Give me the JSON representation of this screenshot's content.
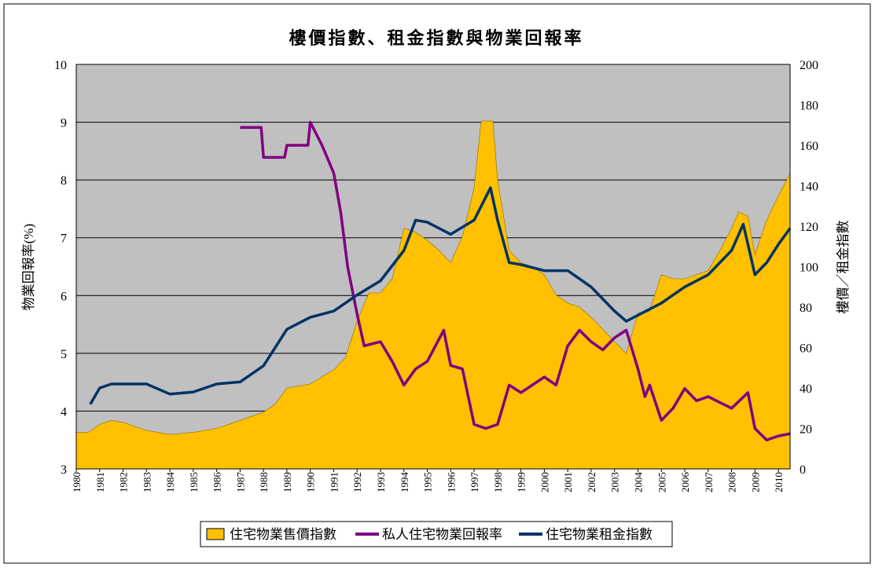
{
  "chart_data": {
    "type": "line",
    "title": "樓價指數、租金指數與物業回報率",
    "ylabel_left": "物業回報率(%)",
    "ylabel_right": "樓價／租金指數",
    "ylim_left": [
      3,
      10
    ],
    "ylim_right": [
      0,
      200
    ],
    "xlim": [
      1980,
      2010.5
    ],
    "yticks_left": [
      "3",
      "4",
      "5",
      "6",
      "7",
      "8",
      "9",
      "10"
    ],
    "yticks_right": [
      "0",
      "20",
      "40",
      "60",
      "80",
      "100",
      "120",
      "140",
      "160",
      "180",
      "200"
    ],
    "xticks": [
      "1980",
      "1981",
      "1982",
      "1983",
      "1984",
      "1985",
      "1986",
      "1987",
      "1988",
      "1989",
      "1990",
      "1991",
      "1992",
      "1993",
      "1994",
      "1995",
      "1996",
      "1997",
      "1998",
      "1999",
      "2000",
      "2001",
      "2002",
      "2003",
      "2004",
      "2005",
      "2006",
      "2007",
      "2008",
      "2009",
      "2010"
    ],
    "grid": "horizontal",
    "plot_background": "#c0c0c0",
    "legend_position": "bottom",
    "series": [
      {
        "name": "住宅物業售價指數",
        "kind": "area",
        "axis": "right",
        "color": "#ffc000",
        "points": [
          [
            1980,
            18
          ],
          [
            1980.5,
            18
          ],
          [
            1981,
            22
          ],
          [
            1981.5,
            24
          ],
          [
            1982,
            23
          ],
          [
            1983,
            19
          ],
          [
            1984,
            17
          ],
          [
            1985,
            18
          ],
          [
            1986,
            20
          ],
          [
            1987,
            24
          ],
          [
            1988,
            28
          ],
          [
            1988.5,
            32
          ],
          [
            1989,
            40
          ],
          [
            1990,
            42
          ],
          [
            1991,
            49
          ],
          [
            1991.5,
            55
          ],
          [
            1992,
            73
          ],
          [
            1992.5,
            87
          ],
          [
            1993,
            87
          ],
          [
            1993.5,
            94
          ],
          [
            1994,
            119
          ],
          [
            1994.5,
            117
          ],
          [
            1995,
            113
          ],
          [
            1995.5,
            108
          ],
          [
            1996,
            102
          ],
          [
            1996.5,
            115
          ],
          [
            1997,
            139
          ],
          [
            1997.3,
            172
          ],
          [
            1997.8,
            172
          ],
          [
            1998,
            143
          ],
          [
            1998.5,
            108
          ],
          [
            1999,
            102
          ],
          [
            1999.5,
            100
          ],
          [
            2000,
            96
          ],
          [
            2000.5,
            86
          ],
          [
            2001,
            82
          ],
          [
            2001.5,
            80
          ],
          [
            2002,
            75
          ],
          [
            2002.5,
            69
          ],
          [
            2003,
            63
          ],
          [
            2003.5,
            57
          ],
          [
            2004,
            77
          ],
          [
            2004.5,
            78
          ],
          [
            2005,
            96
          ],
          [
            2005.5,
            94
          ],
          [
            2006,
            94
          ],
          [
            2007,
            98
          ],
          [
            2007.5,
            108
          ],
          [
            2008,
            119
          ],
          [
            2008.3,
            127
          ],
          [
            2008.7,
            125
          ],
          [
            2009,
            106
          ],
          [
            2009.5,
            123
          ],
          [
            2010,
            135
          ],
          [
            2010.5,
            146
          ]
        ]
      },
      {
        "name": "私人住宅物業回報率",
        "kind": "line",
        "axis": "left",
        "color": "#800080",
        "points": [
          [
            1987,
            8.91
          ],
          [
            1987.9,
            8.91
          ],
          [
            1988,
            8.39
          ],
          [
            1988.9,
            8.39
          ],
          [
            1989,
            8.6
          ],
          [
            1989.9,
            8.6
          ],
          [
            1990,
            9.0
          ],
          [
            1990.5,
            8.6
          ],
          [
            1991,
            8.12
          ],
          [
            1991.3,
            7.44
          ],
          [
            1991.6,
            6.49
          ],
          [
            1992,
            5.68
          ],
          [
            1992.3,
            5.13
          ],
          [
            1993,
            5.2
          ],
          [
            1993.5,
            4.86
          ],
          [
            1994,
            4.45
          ],
          [
            1994.5,
            4.73
          ],
          [
            1995,
            4.86
          ],
          [
            1995.7,
            5.4
          ],
          [
            1996,
            4.79
          ],
          [
            1996.5,
            4.73
          ],
          [
            1997,
            3.77
          ],
          [
            1997.5,
            3.7
          ],
          [
            1998,
            3.77
          ],
          [
            1998.5,
            4.45
          ],
          [
            1999,
            4.32
          ],
          [
            2000,
            4.59
          ],
          [
            2000.5,
            4.45
          ],
          [
            2001,
            5.13
          ],
          [
            2001.5,
            5.4
          ],
          [
            2002,
            5.2
          ],
          [
            2002.5,
            5.06
          ],
          [
            2003,
            5.27
          ],
          [
            2003.5,
            5.4
          ],
          [
            2004,
            4.73
          ],
          [
            2004.3,
            4.25
          ],
          [
            2004.5,
            4.45
          ],
          [
            2005,
            3.84
          ],
          [
            2005.5,
            4.05
          ],
          [
            2006,
            4.39
          ],
          [
            2006.5,
            4.18
          ],
          [
            2007,
            4.25
          ],
          [
            2008,
            4.05
          ],
          [
            2008.7,
            4.32
          ],
          [
            2009,
            3.7
          ],
          [
            2009.5,
            3.5
          ],
          [
            2010,
            3.57
          ],
          [
            2010.5,
            3.61
          ]
        ]
      },
      {
        "name": "住宅物業租金指數",
        "kind": "line",
        "axis": "right",
        "color": "#003366",
        "points": [
          [
            1980.6,
            32
          ],
          [
            1981,
            40
          ],
          [
            1981.5,
            42
          ],
          [
            1983,
            42
          ],
          [
            1984,
            37
          ],
          [
            1985,
            38
          ],
          [
            1986,
            42
          ],
          [
            1987,
            43
          ],
          [
            1988,
            51
          ],
          [
            1989,
            69
          ],
          [
            1990,
            75
          ],
          [
            1991,
            78
          ],
          [
            1992,
            86
          ],
          [
            1993,
            93
          ],
          [
            1994,
            108
          ],
          [
            1994.5,
            123
          ],
          [
            1995,
            122
          ],
          [
            1996,
            116
          ],
          [
            1997,
            123
          ],
          [
            1997.7,
            139
          ],
          [
            1998,
            123
          ],
          [
            1998.5,
            102
          ],
          [
            1999,
            101
          ],
          [
            2000,
            98
          ],
          [
            2001,
            98
          ],
          [
            2002,
            90
          ],
          [
            2003,
            78
          ],
          [
            2003.5,
            73
          ],
          [
            2004,
            76
          ],
          [
            2005,
            82
          ],
          [
            2006,
            90
          ],
          [
            2007,
            96
          ],
          [
            2008,
            108
          ],
          [
            2008.5,
            121
          ],
          [
            2009,
            96
          ],
          [
            2009.5,
            102
          ],
          [
            2010,
            111
          ],
          [
            2010.5,
            119
          ]
        ]
      }
    ]
  }
}
